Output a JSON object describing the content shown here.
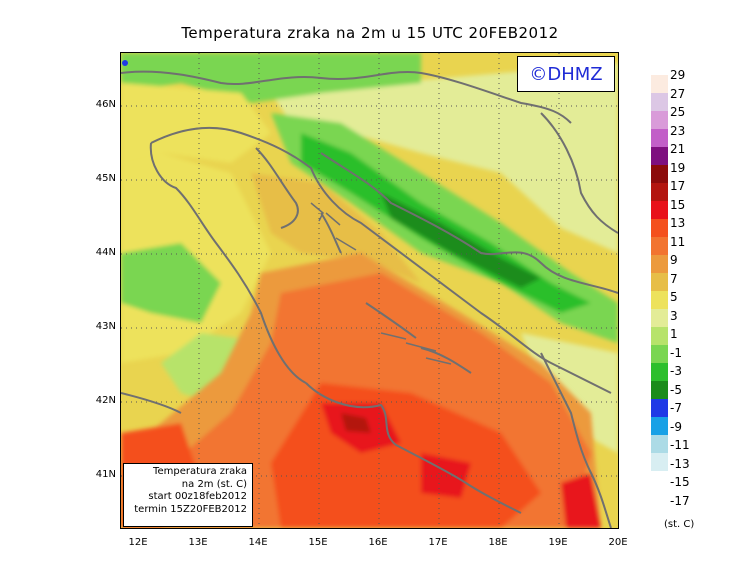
{
  "title": "Temperatura zraka na 2m u 15 UTC 20FEB2012",
  "logo": "©DHMZ",
  "info": {
    "line1": "Temperatura zraka",
    "line2": "na 2m (st. C)",
    "line3": "start 00z18feb2012",
    "line4": "termin 15Z20FEB2012"
  },
  "lat_labels": [
    "46N",
    "45N",
    "44N",
    "43N",
    "42N",
    "41N"
  ],
  "lon_labels": [
    "12E",
    "13E",
    "14E",
    "15E",
    "16E",
    "17E",
    "18E",
    "19E",
    "20E"
  ],
  "legend": {
    "labels": [
      "29",
      "27",
      "25",
      "23",
      "21",
      "19",
      "17",
      "15",
      "13",
      "11",
      "9",
      "7",
      "5",
      "3",
      "1",
      "-1",
      "-3",
      "-5",
      "-7",
      "-9",
      "-11",
      "-13",
      "-15",
      "-17"
    ],
    "colors": [
      "#fcebe0",
      "#dcc7e5",
      "#d99bd9",
      "#c25fc8",
      "#7e0f7f",
      "#8c0b0b",
      "#b3150f",
      "#e8121a",
      "#f4501d",
      "#f27430",
      "#ec9a3d",
      "#e7be47",
      "#ede25c",
      "#e3ec97",
      "#b7e36b",
      "#7ad651",
      "#2cbf2c",
      "#1a8c1a",
      "#1f3ae6",
      "#18a1e6",
      "#acdbe6",
      "#d8eef2",
      "#ffffff"
    ],
    "unit": "(st. C)"
  }
}
